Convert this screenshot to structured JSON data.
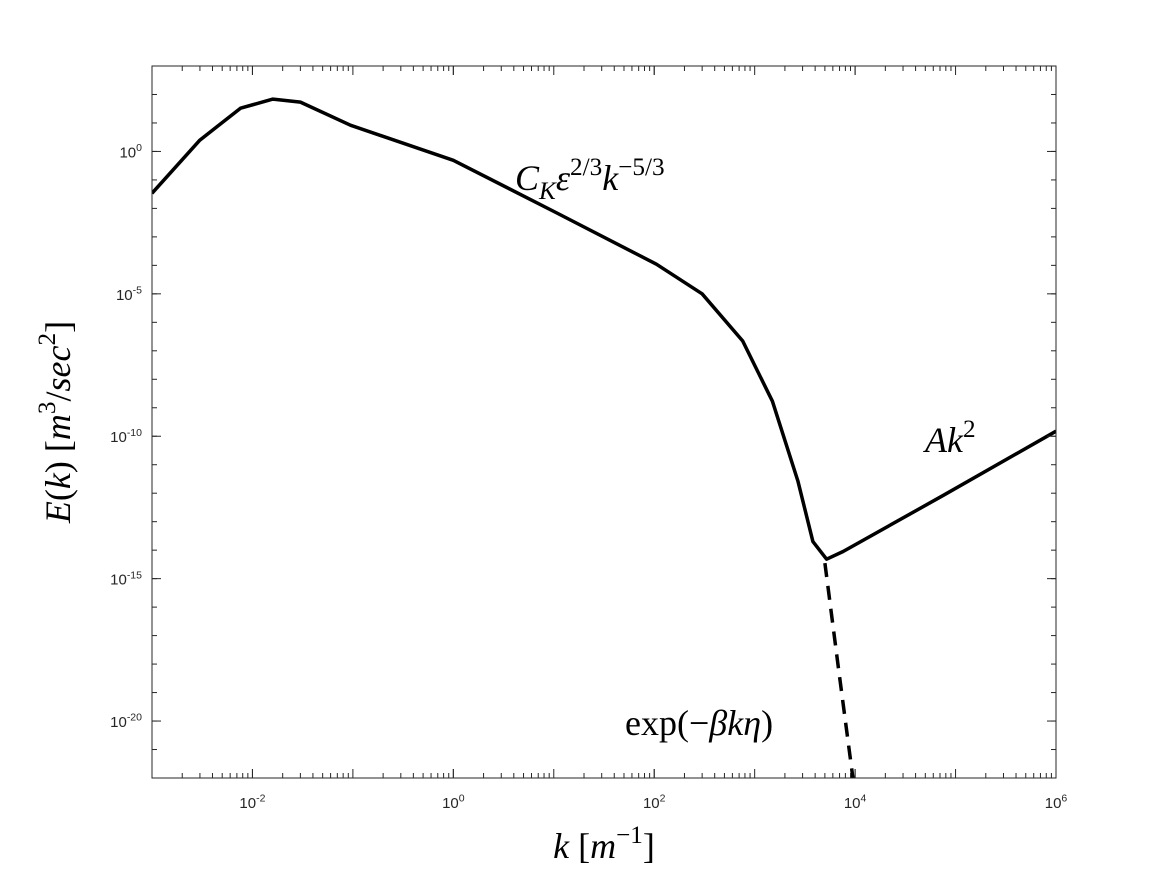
{
  "chart_data": {
    "type": "line",
    "xlabel": "k  [m^{−1}]",
    "ylabel": "E(k)  [m^{3}/sec^{2}]",
    "xscale": "log",
    "yscale": "log",
    "xlim": [
      0.001,
      1000000
    ],
    "ylim": [
      1e-22,
      1000
    ],
    "xticks": [
      {
        "value": 0.01,
        "label": "10^{-2}"
      },
      {
        "value": 1,
        "label": "10^{0}"
      },
      {
        "value": 100,
        "label": "10^{2}"
      },
      {
        "value": 10000,
        "label": "10^{4}"
      },
      {
        "value": 1000000,
        "label": "10^{6}"
      }
    ],
    "yticks": [
      {
        "value": 1e-20,
        "label": "10^{-20}"
      },
      {
        "value": 1e-15,
        "label": "10^{-15}"
      },
      {
        "value": 1e-10,
        "label": "10^{-10}"
      },
      {
        "value": 1e-05,
        "label": "10^{-5}"
      },
      {
        "value": 1,
        "label": "10^{0}"
      }
    ],
    "series": [
      {
        "color": "#000000",
        "linestyle": "solid",
        "x": [
          0.001,
          0.003,
          0.0076,
          0.016,
          0.03,
          0.095,
          1.0,
          10.5,
          105,
          300,
          760,
          1500,
          2700,
          3800,
          5200,
          7600,
          76000,
          1000000
        ],
        "values": [
          0.034,
          2.5,
          33,
          69,
          54,
          8.3,
          0.49,
          0.0072,
          0.00011,
          1e-05,
          2.2e-07,
          1.7e-09,
          2.6e-12,
          2e-14,
          4.8e-15,
          9e-15,
          8.5e-13,
          1.5e-10
        ]
      },
      {
        "color": "#000000",
        "linestyle": "dashed",
        "x": [
          5000,
          6900,
          9500
        ],
        "values": [
          3.5e-15,
          5.4e-19,
          1e-22
        ]
      }
    ],
    "annotations": [
      "C_{K}ε^{2/3}k^{−5/3}",
      "Ak^{2}",
      "exp(−βkη)"
    ]
  }
}
